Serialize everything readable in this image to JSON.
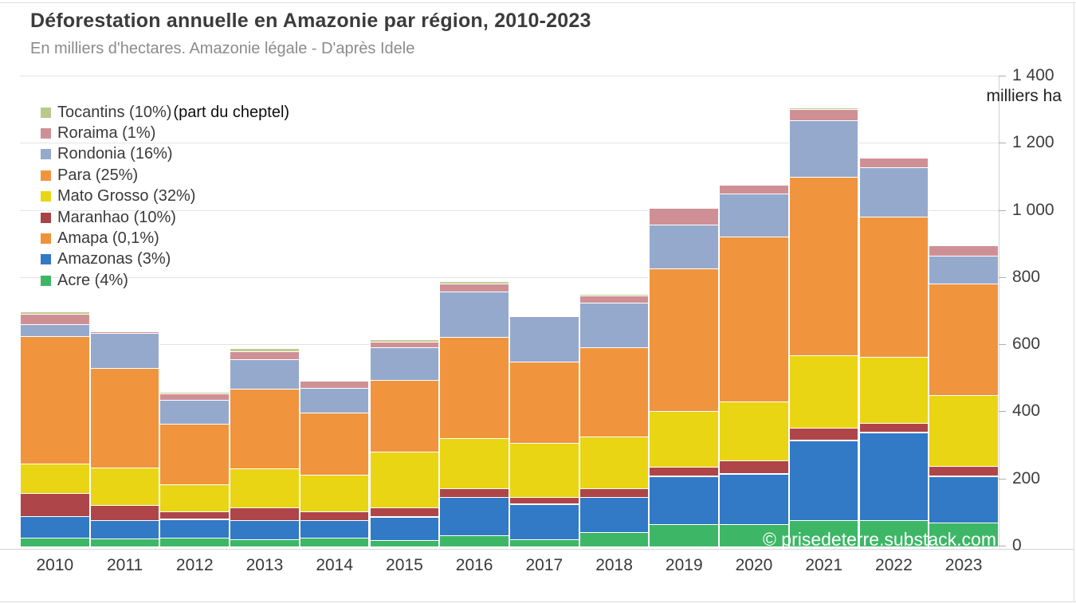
{
  "header": {
    "title": "Déforestation annuelle en Amazonie par région, 2010-2023",
    "subtitle": "En milliers d'hectares. Amazonie légale - D'après Idele"
  },
  "y_axis": {
    "unit": "milliers ha",
    "tick_values": [
      0,
      200,
      400,
      600,
      800,
      1000,
      1200,
      1400
    ],
    "tick_labels": [
      "0",
      "200",
      "400",
      "600",
      "800",
      "1 000",
      "1 200",
      "1 400"
    ]
  },
  "legend": {
    "position": "top-left",
    "items": [
      {
        "label": "Tocantins (10%)",
        "color": "#b9c98c",
        "annotation": "(part du cheptel)"
      },
      {
        "label": "Roraima (1%)",
        "color": "#cf9095",
        "annotation": ""
      },
      {
        "label": "Rondonia (16%)",
        "color": "#95a9cd",
        "annotation": ""
      },
      {
        "label": "Para (25%)",
        "color": "#f0943e",
        "annotation": ""
      },
      {
        "label": "Mato Grosso (32%)",
        "color": "#e9d514",
        "annotation": ""
      },
      {
        "label": "Maranhao (10%)",
        "color": "#a84347",
        "annotation": ""
      },
      {
        "label": "Amapa (0,1%)",
        "color": "#f0923a",
        "annotation": ""
      },
      {
        "label": "Amazonas (3%)",
        "color": "#3279c6",
        "annotation": ""
      },
      {
        "label": "Acre (4%)",
        "color": "#3db766",
        "annotation": ""
      }
    ]
  },
  "watermark": {
    "text": "© prisedeterre.substack.com"
  },
  "chart_data": {
    "type": "bar",
    "stacked": true,
    "title": "Déforestation annuelle en Amazonie par région, 2010-2023",
    "subtitle": "En milliers d'hectares. Amazonie légale - D'après Idele",
    "ylabel": "milliers ha",
    "xlabel": "",
    "ylim": [
      0,
      1400
    ],
    "grid": true,
    "legend_position": "top-left",
    "categories": [
      "2010",
      "2011",
      "2012",
      "2013",
      "2014",
      "2015",
      "2016",
      "2017",
      "2018",
      "2019",
      "2020",
      "2021",
      "2022",
      "2023"
    ],
    "stacking_order": "bottom_to_top",
    "series": [
      {
        "name": "Acre",
        "color": "#3db766",
        "values": [
          24,
          21,
          24,
          19,
          24,
          17,
          31,
          19,
          40,
          64,
          64,
          76,
          76,
          69
        ]
      },
      {
        "name": "Amazonas",
        "color": "#3279c6",
        "values": [
          64,
          55,
          55,
          57,
          52,
          69,
          114,
          105,
          105,
          143,
          150,
          238,
          262,
          138
        ]
      },
      {
        "name": "Amapa",
        "color": "#f0923a",
        "values": [
          1,
          1,
          1,
          1,
          1,
          1,
          1,
          1,
          1,
          1,
          1,
          1,
          1,
          1
        ]
      },
      {
        "name": "Maranhao",
        "color": "#ae4649",
        "values": [
          67,
          43,
          21,
          38,
          24,
          26,
          24,
          21,
          26,
          26,
          38,
          36,
          26,
          29
        ]
      },
      {
        "name": "Mato Grosso",
        "color": "#e9d514",
        "values": [
          88,
          112,
          83,
          115,
          110,
          167,
          150,
          160,
          153,
          167,
          177,
          217,
          198,
          212
        ]
      },
      {
        "name": "Para",
        "color": "#f0943e",
        "values": [
          380,
          298,
          179,
          238,
          185,
          214,
          302,
          243,
          266,
          424,
          490,
          531,
          417,
          331
        ]
      },
      {
        "name": "Rondonia",
        "color": "#95a9cd",
        "values": [
          36,
          104,
          71,
          88,
          74,
          97,
          136,
          135,
          134,
          131,
          129,
          169,
          147,
          83
        ]
      },
      {
        "name": "Roraima",
        "color": "#cf9095",
        "values": [
          30,
          4,
          19,
          23,
          21,
          17,
          24,
          3,
          21,
          50,
          26,
          33,
          29,
          31
        ]
      },
      {
        "name": "Tocantins",
        "color": "#c2c98f",
        "values": [
          8,
          2,
          5,
          10,
          3,
          7,
          7,
          2,
          5,
          3,
          2,
          5,
          2,
          2
        ]
      }
    ]
  }
}
